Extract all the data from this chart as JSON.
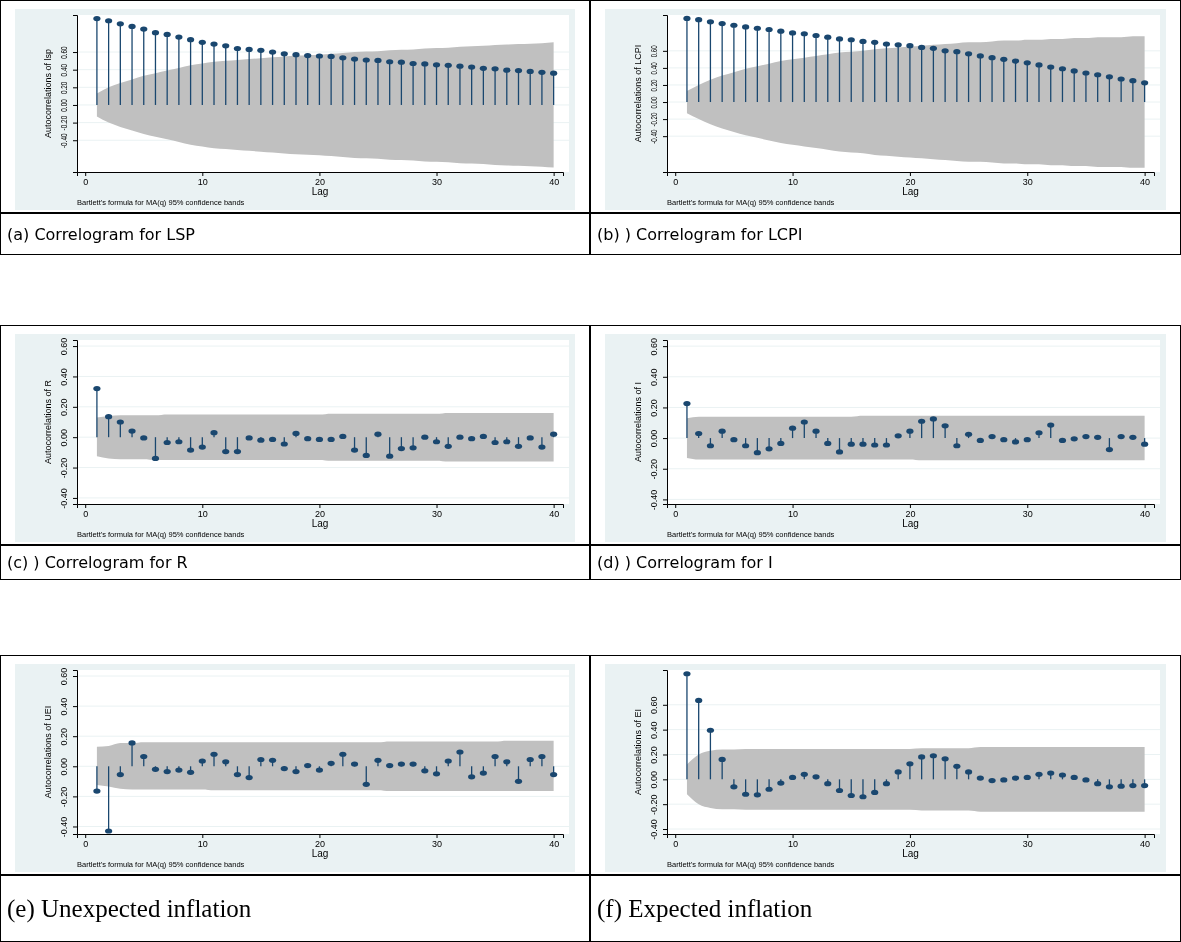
{
  "chart_data": [
    {
      "type": "lollipop",
      "ylabel": "Autocorrelations of lsp",
      "xlabel": "Lag",
      "annotations": [
        "Bartlett's formula for MA(q) 95% confidence bands",
        "(a) Correlogram for LSP"
      ],
      "x": [
        1,
        2,
        3,
        4,
        5,
        6,
        7,
        8,
        9,
        10,
        11,
        12,
        13,
        14,
        15,
        16,
        17,
        18,
        19,
        20,
        21,
        22,
        23,
        24,
        25,
        26,
        27,
        28,
        29,
        30,
        31,
        32,
        33,
        34,
        35,
        36,
        37,
        38,
        39,
        40
      ],
      "xlim": [
        -0.7,
        40.8
      ],
      "xticks": [
        0,
        10,
        20,
        30,
        40
      ],
      "ylim": [
        -0.76,
        1.02
      ],
      "yticks": [
        {
          "value": -0.4,
          "label": "-0.40"
        },
        {
          "value": -0.2,
          "label": "-0.20"
        },
        {
          "value": 0,
          "label": "0.00"
        },
        {
          "value": 0.2,
          "label": "0.20"
        },
        {
          "value": 0.4,
          "label": "0.40"
        },
        {
          "value": 0.6,
          "label": "0.60"
        }
      ],
      "grid": "y",
      "marker": "circle",
      "series": [
        {
          "color": "#1a476f",
          "values": [
            0.98,
            0.955,
            0.92,
            0.89,
            0.86,
            0.82,
            0.8,
            0.77,
            0.74,
            0.71,
            0.69,
            0.67,
            0.64,
            0.63,
            0.62,
            0.6,
            0.58,
            0.57,
            0.56,
            0.555,
            0.55,
            0.535,
            0.52,
            0.51,
            0.505,
            0.49,
            0.485,
            0.47,
            0.465,
            0.455,
            0.45,
            0.44,
            0.43,
            0.415,
            0.41,
            0.395,
            0.39,
            0.38,
            0.37,
            0.36
          ],
          "upper": [
            0.13,
            0.2,
            0.25,
            0.29,
            0.33,
            0.36,
            0.39,
            0.42,
            0.45,
            0.47,
            0.49,
            0.5,
            0.51,
            0.52,
            0.53,
            0.54,
            0.55,
            0.56,
            0.565,
            0.57,
            0.58,
            0.59,
            0.6,
            0.605,
            0.61,
            0.62,
            0.625,
            0.63,
            0.64,
            0.645,
            0.65,
            0.66,
            0.665,
            0.67,
            0.68,
            0.685,
            0.69,
            0.695,
            0.7,
            0.71
          ],
          "lower": [
            -0.13,
            -0.2,
            -0.25,
            -0.29,
            -0.33,
            -0.36,
            -0.39,
            -0.42,
            -0.45,
            -0.47,
            -0.49,
            -0.5,
            -0.51,
            -0.52,
            -0.53,
            -0.54,
            -0.55,
            -0.56,
            -0.565,
            -0.57,
            -0.58,
            -0.59,
            -0.6,
            -0.605,
            -0.61,
            -0.62,
            -0.625,
            -0.63,
            -0.64,
            -0.645,
            -0.65,
            -0.66,
            -0.665,
            -0.67,
            -0.68,
            -0.685,
            -0.69,
            -0.695,
            -0.7,
            -0.71
          ]
        }
      ]
    },
    {
      "type": "lollipop",
      "ylabel": "Autocorrelations of LCPI",
      "xlabel": "Lag",
      "annotations": [
        "Bartlett's formula for MA(q) 95% confidence bands",
        "(b) ) Correlogram for LCPI"
      ],
      "x": [
        1,
        2,
        3,
        4,
        5,
        6,
        7,
        8,
        9,
        10,
        11,
        12,
        13,
        14,
        15,
        16,
        17,
        18,
        19,
        20,
        21,
        22,
        23,
        24,
        25,
        26,
        27,
        28,
        29,
        30,
        31,
        32,
        33,
        34,
        35,
        36,
        37,
        38,
        39,
        40
      ],
      "xlim": [
        -0.7,
        40.8
      ],
      "xticks": [
        0,
        10,
        20,
        30,
        40
      ],
      "ylim": [
        -0.82,
        1.02
      ],
      "yticks": [
        {
          "value": -0.4,
          "label": "-0.40"
        },
        {
          "value": -0.2,
          "label": "-0.20"
        },
        {
          "value": 0,
          "label": "0.00"
        },
        {
          "value": 0.2,
          "label": "0.20"
        },
        {
          "value": 0.4,
          "label": "0.40"
        },
        {
          "value": 0.6,
          "label": "0.60"
        }
      ],
      "grid": "y",
      "marker": "circle",
      "series": [
        {
          "color": "#1a476f",
          "values": [
            0.98,
            0.965,
            0.94,
            0.92,
            0.9,
            0.88,
            0.865,
            0.85,
            0.83,
            0.81,
            0.8,
            0.78,
            0.76,
            0.74,
            0.73,
            0.71,
            0.7,
            0.68,
            0.67,
            0.66,
            0.64,
            0.63,
            0.6,
            0.59,
            0.565,
            0.54,
            0.52,
            0.5,
            0.48,
            0.46,
            0.435,
            0.41,
            0.39,
            0.365,
            0.34,
            0.32,
            0.295,
            0.27,
            0.25,
            0.225
          ],
          "upper": [
            0.13,
            0.2,
            0.26,
            0.31,
            0.35,
            0.39,
            0.42,
            0.45,
            0.48,
            0.5,
            0.52,
            0.54,
            0.56,
            0.58,
            0.59,
            0.6,
            0.62,
            0.63,
            0.64,
            0.65,
            0.66,
            0.67,
            0.68,
            0.69,
            0.7,
            0.7,
            0.71,
            0.72,
            0.72,
            0.73,
            0.73,
            0.74,
            0.74,
            0.75,
            0.75,
            0.76,
            0.76,
            0.76,
            0.77,
            0.77
          ],
          "lower": [
            -0.13,
            -0.2,
            -0.26,
            -0.31,
            -0.35,
            -0.39,
            -0.42,
            -0.45,
            -0.48,
            -0.5,
            -0.52,
            -0.54,
            -0.56,
            -0.58,
            -0.59,
            -0.6,
            -0.62,
            -0.63,
            -0.64,
            -0.65,
            -0.66,
            -0.67,
            -0.68,
            -0.69,
            -0.7,
            -0.7,
            -0.71,
            -0.72,
            -0.72,
            -0.73,
            -0.73,
            -0.74,
            -0.74,
            -0.75,
            -0.75,
            -0.76,
            -0.76,
            -0.76,
            -0.77,
            -0.77
          ]
        }
      ]
    },
    {
      "type": "lollipop",
      "ylabel": "Autocorrelations of R",
      "xlabel": "Lag",
      "annotations": [
        "Bartlett's formula for MA(q) 95% confidence bands",
        "(c) ) Correlogram for R"
      ],
      "x": [
        1,
        2,
        3,
        4,
        5,
        6,
        7,
        8,
        9,
        10,
        11,
        12,
        13,
        14,
        15,
        16,
        17,
        18,
        19,
        20,
        21,
        22,
        23,
        24,
        25,
        26,
        27,
        28,
        29,
        30,
        31,
        32,
        33,
        34,
        35,
        36,
        37,
        38,
        39,
        40
      ],
      "xlim": [
        -0.7,
        40.8
      ],
      "xticks": [
        0,
        10,
        20,
        30,
        40
      ],
      "ylim": [
        -0.44,
        0.64
      ],
      "yticks": [
        {
          "value": -0.4,
          "label": "-0.40"
        },
        {
          "value": -0.2,
          "label": "-0.20"
        },
        {
          "value": 0,
          "label": "0.00"
        },
        {
          "value": 0.2,
          "label": "0.20"
        },
        {
          "value": 0.4,
          "label": "0.40"
        },
        {
          "value": 0.6,
          "label": "0.60"
        }
      ],
      "grid": "y",
      "marker": "circle",
      "series": [
        {
          "color": "#1a476f",
          "values": [
            0.32,
            0.135,
            0.1,
            0.04,
            -0.005,
            -0.14,
            -0.035,
            -0.03,
            -0.085,
            -0.065,
            0.03,
            -0.095,
            -0.095,
            -0.005,
            -0.02,
            -0.015,
            -0.045,
            0.025,
            -0.01,
            -0.015,
            -0.015,
            0.005,
            -0.085,
            -0.12,
            0.02,
            -0.125,
            -0.075,
            -0.07,
            0,
            -0.03,
            -0.06,
            0,
            -0.01,
            0.005,
            -0.035,
            -0.03,
            -0.06,
            -0.005,
            -0.065,
            0.02
          ],
          "upper": [
            0.13,
            0.14,
            0.145,
            0.145,
            0.145,
            0.145,
            0.15,
            0.15,
            0.15,
            0.15,
            0.15,
            0.15,
            0.15,
            0.15,
            0.15,
            0.15,
            0.15,
            0.15,
            0.15,
            0.15,
            0.155,
            0.155,
            0.155,
            0.155,
            0.155,
            0.155,
            0.155,
            0.155,
            0.155,
            0.155,
            0.16,
            0.16,
            0.16,
            0.16,
            0.16,
            0.16,
            0.16,
            0.16,
            0.16,
            0.16
          ],
          "lower": [
            -0.125,
            -0.14,
            -0.145,
            -0.145,
            -0.145,
            -0.15,
            -0.15,
            -0.15,
            -0.15,
            -0.15,
            -0.15,
            -0.15,
            -0.15,
            -0.15,
            -0.15,
            -0.15,
            -0.15,
            -0.15,
            -0.15,
            -0.15,
            -0.155,
            -0.155,
            -0.155,
            -0.155,
            -0.155,
            -0.155,
            -0.155,
            -0.155,
            -0.155,
            -0.155,
            -0.16,
            -0.16,
            -0.16,
            -0.16,
            -0.16,
            -0.16,
            -0.16,
            -0.16,
            -0.16,
            -0.16
          ]
        }
      ]
    },
    {
      "type": "lollipop",
      "ylabel": "Autocorrelations of I",
      "xlabel": "Lag",
      "annotations": [
        "Bartlett's formula for MA(q) 95% confidence bands",
        "(d) ) Correlogram for I"
      ],
      "x": [
        1,
        2,
        3,
        4,
        5,
        6,
        7,
        8,
        9,
        10,
        11,
        12,
        13,
        14,
        15,
        16,
        17,
        18,
        19,
        20,
        21,
        22,
        23,
        24,
        25,
        26,
        27,
        28,
        29,
        30,
        31,
        32,
        33,
        34,
        35,
        36,
        37,
        38,
        39,
        40
      ],
      "xlim": [
        -0.7,
        40.8
      ],
      "xticks": [
        0,
        10,
        20,
        30,
        40
      ],
      "ylim": [
        -0.43,
        0.64
      ],
      "yticks": [
        {
          "value": -0.4,
          "label": "-0.40"
        },
        {
          "value": -0.2,
          "label": "-0.20"
        },
        {
          "value": 0,
          "label": "0.00"
        },
        {
          "value": 0.2,
          "label": "0.20"
        },
        {
          "value": 0.4,
          "label": "0.40"
        },
        {
          "value": 0.6,
          "label": "0.60"
        }
      ],
      "grid": "y",
      "marker": "circle",
      "series": [
        {
          "color": "#1a476f",
          "values": [
            0.225,
            0.03,
            -0.05,
            0.045,
            -0.01,
            -0.05,
            -0.095,
            -0.07,
            -0.035,
            0.065,
            0.105,
            0.045,
            -0.035,
            -0.09,
            -0.04,
            -0.04,
            -0.045,
            -0.045,
            0.015,
            0.045,
            0.11,
            0.125,
            0.08,
            -0.05,
            0.025,
            -0.015,
            0.01,
            -0.01,
            -0.025,
            -0.01,
            0.035,
            0.085,
            -0.015,
            -0.005,
            0.01,
            0.005,
            -0.075,
            0.01,
            0.005,
            -0.04
          ],
          "upper": [
            0.13,
            0.14,
            0.14,
            0.14,
            0.14,
            0.14,
            0.14,
            0.14,
            0.14,
            0.14,
            0.14,
            0.14,
            0.14,
            0.14,
            0.14,
            0.145,
            0.145,
            0.145,
            0.145,
            0.145,
            0.145,
            0.145,
            0.145,
            0.145,
            0.145,
            0.145,
            0.145,
            0.145,
            0.145,
            0.145,
            0.145,
            0.145,
            0.145,
            0.145,
            0.145,
            0.145,
            0.145,
            0.145,
            0.145,
            0.145
          ],
          "lower": [
            -0.13,
            -0.14,
            -0.14,
            -0.14,
            -0.14,
            -0.14,
            -0.14,
            -0.14,
            -0.14,
            -0.14,
            -0.14,
            -0.14,
            -0.14,
            -0.14,
            -0.14,
            -0.14,
            -0.14,
            -0.14,
            -0.14,
            -0.14,
            -0.145,
            -0.145,
            -0.145,
            -0.145,
            -0.145,
            -0.145,
            -0.145,
            -0.145,
            -0.145,
            -0.145,
            -0.145,
            -0.145,
            -0.145,
            -0.145,
            -0.145,
            -0.145,
            -0.145,
            -0.145,
            -0.145,
            -0.145
          ]
        }
      ]
    },
    {
      "type": "lollipop",
      "ylabel": "Autocorrelations of UEI",
      "xlabel": "Lag",
      "annotations": [
        "Bartlett's formula for MA(q) 95% confidence bands",
        "(e) Unexpected inflation"
      ],
      "x": [
        1,
        2,
        3,
        4,
        5,
        6,
        7,
        8,
        9,
        10,
        11,
        12,
        13,
        14,
        15,
        16,
        17,
        18,
        19,
        20,
        21,
        22,
        23,
        24,
        25,
        26,
        27,
        28,
        29,
        30,
        31,
        32,
        33,
        34,
        35,
        36,
        37,
        38,
        39,
        40
      ],
      "xlim": [
        -0.7,
        40.8
      ],
      "xticks": [
        0,
        10,
        20,
        30,
        40
      ],
      "ylim": [
        -0.45,
        0.64
      ],
      "yticks": [
        {
          "value": -0.4,
          "label": "-0.40"
        },
        {
          "value": -0.2,
          "label": "-0.20"
        },
        {
          "value": 0,
          "label": "0.00"
        },
        {
          "value": 0.2,
          "label": "0.20"
        },
        {
          "value": 0.4,
          "label": "0.40"
        },
        {
          "value": 0.6,
          "label": "0.60"
        }
      ],
      "grid": "y",
      "marker": "circle",
      "series": [
        {
          "color": "#1a476f",
          "values": [
            -0.165,
            -0.43,
            -0.055,
            0.155,
            0.065,
            -0.02,
            -0.035,
            -0.025,
            -0.04,
            0.035,
            0.08,
            0.03,
            -0.055,
            -0.075,
            0.045,
            0.04,
            -0.015,
            -0.035,
            0.005,
            -0.025,
            0.02,
            0.08,
            0.015,
            -0.12,
            0.04,
            0.005,
            0.015,
            0.015,
            -0.03,
            -0.05,
            0.035,
            0.095,
            -0.07,
            -0.045,
            0.065,
            0.03,
            -0.1,
            0.045,
            0.065,
            -0.055
          ],
          "upper": [
            0.13,
            0.135,
            0.155,
            0.155,
            0.16,
            0.16,
            0.16,
            0.16,
            0.16,
            0.16,
            0.16,
            0.16,
            0.16,
            0.16,
            0.16,
            0.16,
            0.16,
            0.16,
            0.16,
            0.16,
            0.16,
            0.16,
            0.16,
            0.16,
            0.16,
            0.165,
            0.165,
            0.165,
            0.165,
            0.165,
            0.165,
            0.165,
            0.165,
            0.165,
            0.165,
            0.17,
            0.17,
            0.17,
            0.17,
            0.17
          ],
          "lower": [
            -0.125,
            -0.135,
            -0.15,
            -0.155,
            -0.155,
            -0.155,
            -0.155,
            -0.155,
            -0.155,
            -0.155,
            -0.16,
            -0.16,
            -0.16,
            -0.16,
            -0.16,
            -0.16,
            -0.16,
            -0.16,
            -0.16,
            -0.16,
            -0.16,
            -0.16,
            -0.16,
            -0.16,
            -0.16,
            -0.165,
            -0.165,
            -0.165,
            -0.165,
            -0.165,
            -0.165,
            -0.165,
            -0.165,
            -0.165,
            -0.165,
            -0.165,
            -0.165,
            -0.165,
            -0.165,
            -0.165
          ]
        }
      ]
    },
    {
      "type": "lollipop",
      "ylabel": "Autocorrelations of EI",
      "xlabel": "Lag",
      "annotations": [
        "Bartlett's formula for MA(q) 95% confidence bands",
        "(f) Expected inflation"
      ],
      "x": [
        1,
        2,
        3,
        4,
        5,
        6,
        7,
        8,
        9,
        10,
        11,
        12,
        13,
        14,
        15,
        16,
        17,
        18,
        19,
        20,
        21,
        22,
        23,
        24,
        25,
        26,
        27,
        28,
        29,
        30,
        31,
        32,
        33,
        34,
        35,
        36,
        37,
        38,
        39,
        40
      ],
      "xlim": [
        -0.7,
        40.8
      ],
      "xticks": [
        0,
        10,
        20,
        30,
        40
      ],
      "ylim": [
        -0.44,
        0.88
      ],
      "yticks": [
        {
          "value": -0.4,
          "label": "-0.40"
        },
        {
          "value": -0.2,
          "label": "-0.20"
        },
        {
          "value": 0,
          "label": "0.00"
        },
        {
          "value": 0.2,
          "label": "0.20"
        },
        {
          "value": 0.4,
          "label": "0.40"
        },
        {
          "value": 0.6,
          "label": "0.60"
        }
      ],
      "grid": "y",
      "marker": "circle",
      "series": [
        {
          "color": "#1a476f",
          "values": [
            0.85,
            0.635,
            0.395,
            0.16,
            -0.06,
            -0.12,
            -0.125,
            -0.08,
            -0.03,
            0.015,
            0.04,
            0.02,
            -0.035,
            -0.09,
            -0.13,
            -0.14,
            -0.105,
            -0.035,
            0.06,
            0.125,
            0.18,
            0.19,
            0.165,
            0.105,
            0.06,
            0.01,
            -0.01,
            -0.005,
            0.01,
            0.015,
            0.04,
            0.05,
            0.035,
            0.015,
            -0.005,
            -0.035,
            -0.06,
            -0.055,
            -0.05,
            -0.05
          ],
          "upper": [
            0.12,
            0.2,
            0.23,
            0.24,
            0.24,
            0.245,
            0.245,
            0.245,
            0.245,
            0.245,
            0.245,
            0.245,
            0.245,
            0.245,
            0.245,
            0.245,
            0.245,
            0.245,
            0.245,
            0.245,
            0.25,
            0.25,
            0.25,
            0.25,
            0.25,
            0.26,
            0.26,
            0.26,
            0.26,
            0.26,
            0.26,
            0.26,
            0.26,
            0.26,
            0.26,
            0.26,
            0.26,
            0.26,
            0.26,
            0.26
          ],
          "lower": [
            -0.12,
            -0.2,
            -0.23,
            -0.24,
            -0.24,
            -0.245,
            -0.245,
            -0.245,
            -0.245,
            -0.245,
            -0.245,
            -0.245,
            -0.245,
            -0.245,
            -0.245,
            -0.245,
            -0.245,
            -0.245,
            -0.245,
            -0.245,
            -0.25,
            -0.25,
            -0.25,
            -0.25,
            -0.25,
            -0.26,
            -0.26,
            -0.26,
            -0.26,
            -0.26,
            -0.26,
            -0.26,
            -0.26,
            -0.26,
            -0.26,
            -0.26,
            -0.26,
            -0.26,
            -0.26,
            -0.26
          ]
        }
      ]
    }
  ]
}
